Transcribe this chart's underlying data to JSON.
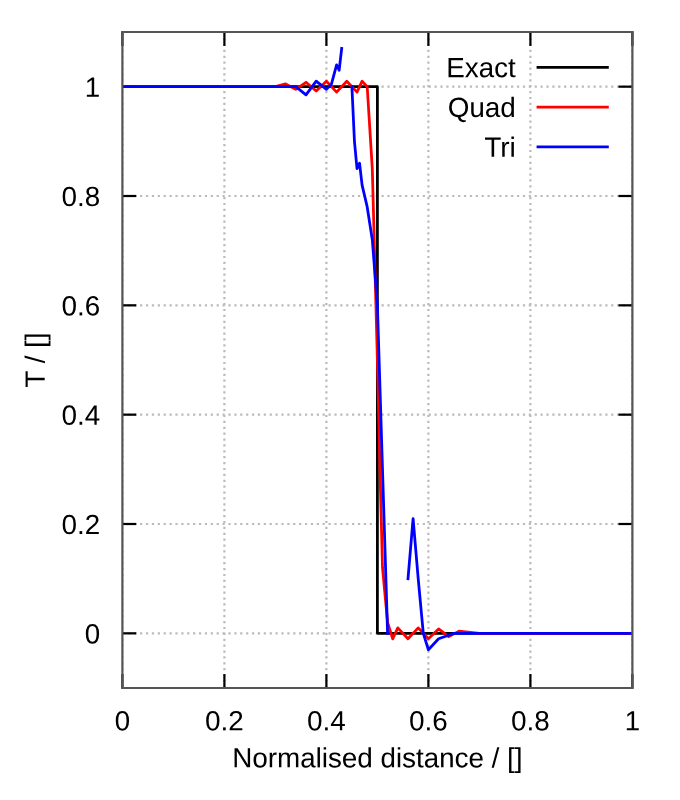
{
  "chart_data": {
    "type": "line",
    "xlabel": "Normalised distance / []",
    "ylabel": "T / []",
    "xlim": [
      0,
      1
    ],
    "ylim": [
      -0.1,
      1.1
    ],
    "xticks": [
      0,
      0.2,
      0.4,
      0.6,
      0.8,
      1
    ],
    "yticks": [
      0,
      0.2,
      0.4,
      0.6,
      0.8,
      1
    ],
    "grid": true,
    "legend": "top right",
    "series": [
      {
        "name": "Exact",
        "color": "#000000",
        "x": [
          0,
          0.5,
          0.5,
          1
        ],
        "values": [
          1,
          1,
          0,
          0
        ]
      },
      {
        "name": "Quad",
        "color": "#ff0000",
        "x": [
          0,
          0.3,
          0.32,
          0.34,
          0.36,
          0.38,
          0.4,
          0.42,
          0.44,
          0.46,
          0.47,
          0.48,
          0.49,
          0.5,
          0.505,
          0.51,
          0.52,
          0.53,
          0.54,
          0.56,
          0.58,
          0.6,
          0.62,
          0.64,
          0.66,
          0.7,
          1
        ],
        "values": [
          1,
          1,
          1.005,
          0.995,
          1.008,
          0.992,
          1.01,
          0.99,
          1.01,
          0.99,
          1.01,
          1.0,
          0.85,
          0.5,
          0.3,
          0.12,
          0.02,
          -0.01,
          0.01,
          -0.01,
          0.01,
          -0.01,
          0.008,
          -0.006,
          0.004,
          0,
          0
        ]
      },
      {
        "name": "Tri",
        "color": "#0000ff",
        "x": [
          0,
          0.3,
          0.34,
          0.36,
          0.38,
          0.4,
          0.41,
          0.42,
          0.425,
          0.43,
          0.433,
          0.437,
          0.44,
          0.45,
          0.455,
          0.46,
          0.465,
          0.47,
          0.48,
          0.49,
          0.5,
          0.51,
          0.52,
          0.525,
          0.54,
          0.55,
          0.56,
          0.57,
          0.58,
          0.59,
          0.6,
          0.62,
          0.65,
          1
        ],
        "values": [
          1,
          1,
          1.0,
          0.985,
          1.01,
          0.995,
          1.005,
          1.04,
          1.03,
          1.07,
          null,
          null,
          null,
          1.0,
          0.9,
          0.85,
          0.86,
          0.82,
          0.78,
          0.72,
          0.6,
          0.3,
          0.0,
          null,
          null,
          null,
          0.1,
          0.21,
          0.1,
          0.0,
          -0.03,
          -0.01,
          0,
          0
        ]
      }
    ]
  }
}
